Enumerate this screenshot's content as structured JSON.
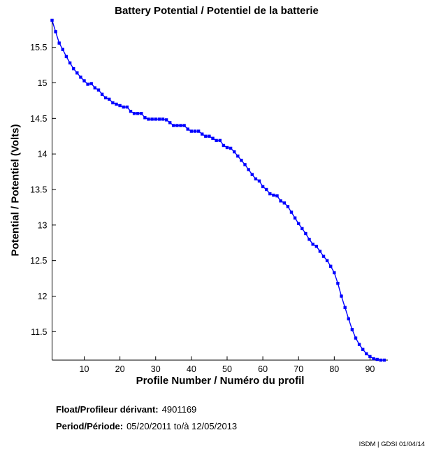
{
  "chart_data": {
    "type": "line",
    "title": "Battery Potential / Potentiel de la batterie",
    "xlabel": "Profile Number / Numéro du profil",
    "ylabel": "Potential / Potentiel (Volts)",
    "xlim": [
      1,
      95
    ],
    "ylim": [
      11.1,
      15.9
    ],
    "xticks": [
      10,
      20,
      30,
      40,
      50,
      60,
      70,
      80,
      90
    ],
    "yticks": [
      11.5,
      12,
      12.5,
      13,
      13.5,
      14,
      14.5,
      15,
      15.5
    ],
    "grid": false,
    "legend": "none",
    "line_color": "#0000FF",
    "axis_color": "#000000",
    "marker": "square",
    "series": [
      {
        "name": "battery-potential",
        "x_first": 1,
        "x_step": 1,
        "values": [
          15.88,
          15.72,
          15.56,
          15.47,
          15.37,
          15.28,
          15.2,
          15.14,
          15.08,
          15.03,
          14.98,
          14.99,
          14.93,
          14.9,
          14.84,
          14.79,
          14.77,
          14.72,
          14.7,
          14.68,
          14.66,
          14.66,
          14.6,
          14.57,
          14.57,
          14.57,
          14.51,
          14.49,
          14.49,
          14.49,
          14.49,
          14.49,
          14.48,
          14.44,
          14.4,
          14.4,
          14.4,
          14.4,
          14.35,
          14.32,
          14.32,
          14.32,
          14.28,
          14.25,
          14.25,
          14.22,
          14.19,
          14.19,
          14.12,
          14.09,
          14.08,
          14.03,
          13.97,
          13.91,
          13.85,
          13.78,
          13.71,
          13.65,
          13.62,
          13.54,
          13.5,
          13.44,
          13.42,
          13.41,
          13.34,
          13.31,
          13.26,
          13.18,
          13.1,
          13.02,
          12.95,
          12.88,
          12.8,
          12.73,
          12.7,
          12.63,
          12.56,
          12.5,
          12.42,
          12.33,
          12.18,
          12.0,
          11.84,
          11.68,
          11.53,
          11.41,
          11.32,
          11.25,
          11.19,
          11.15,
          11.12,
          11.11,
          11.1,
          11.1
        ]
      }
    ]
  },
  "footer": {
    "float_label": "Float/Profileur dérivant:",
    "float_value": "4901169",
    "period_label": "Period/Période:",
    "period_value": "05/20/2011 to/à 12/05/2013",
    "watermark": "ISDM | GDSI 01/04/14"
  }
}
